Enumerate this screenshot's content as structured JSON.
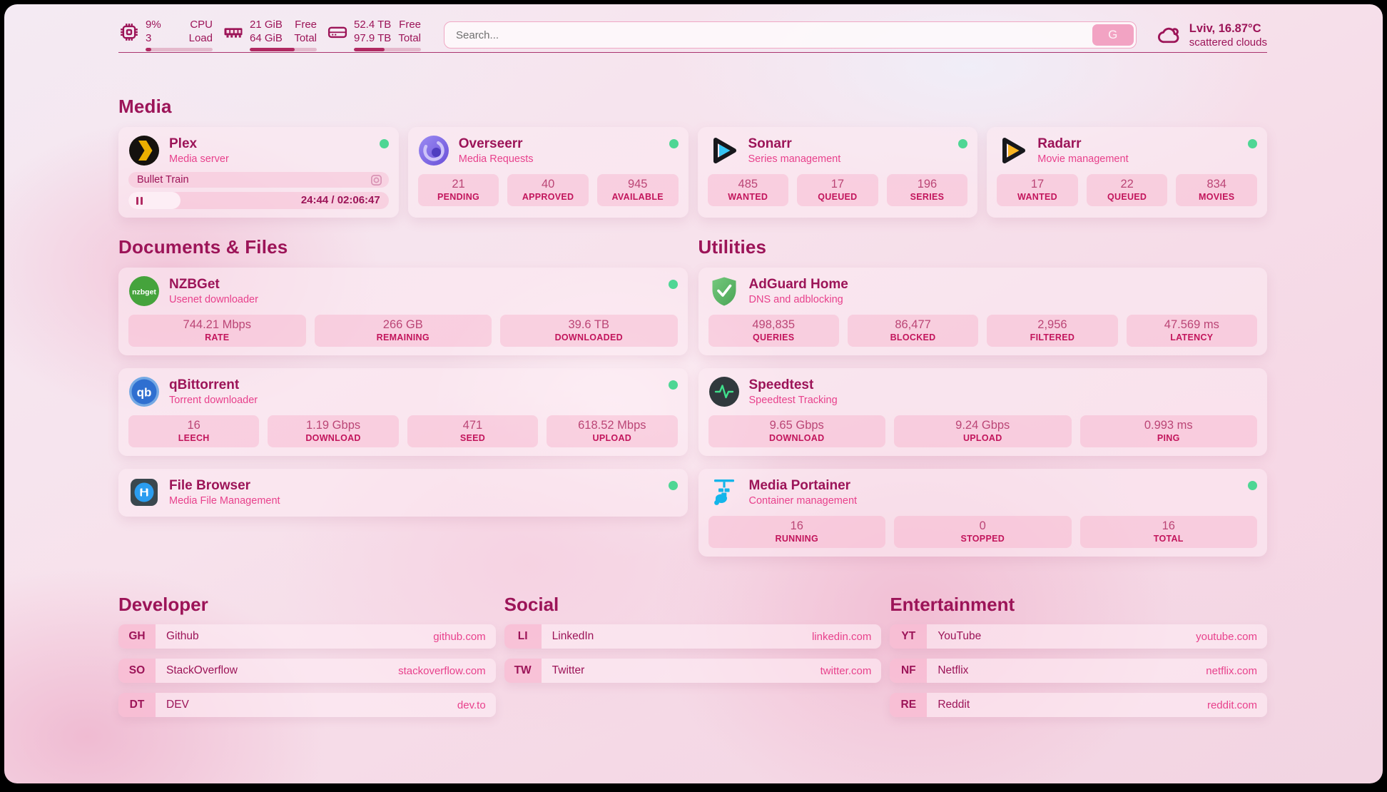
{
  "colors": {
    "accent_dark": "#9c1458",
    "accent_pink": "#e8418c",
    "status_online": "#4ed694",
    "bar_fill": "#b02a62"
  },
  "topbar": {
    "cpu": {
      "value": "9%",
      "secondary": "3",
      "label_top": "CPU",
      "label_bottom": "Load",
      "percent_used": 9
    },
    "memory": {
      "value": "21 GiB",
      "secondary": "64 GiB",
      "label_top": "Free",
      "label_bottom": "Total",
      "percent_used": 67
    },
    "storage": {
      "value": "52.4 TB",
      "secondary": "97.9 TB",
      "label_top": "Free",
      "label_bottom": "Total",
      "percent_used": 46
    },
    "search": {
      "placeholder": "Search...",
      "button_label": "G"
    },
    "weather": {
      "location_temp": "Lviv, 16.87°C",
      "condition": "scattered clouds"
    }
  },
  "media": {
    "title": "Media",
    "plex": {
      "name": "Plex",
      "subtitle": "Media server",
      "online": true,
      "now_playing": {
        "title": "Bullet Train",
        "time_display": "24:44 / 02:06:47",
        "elapsed": "24:44",
        "total": "02:06:47",
        "progress_percent": 20
      }
    },
    "overseerr": {
      "name": "Overseerr",
      "subtitle": "Media Requests",
      "online": true,
      "stats": [
        {
          "value": "21",
          "label": "PENDING"
        },
        {
          "value": "40",
          "label": "APPROVED"
        },
        {
          "value": "945",
          "label": "AVAILABLE"
        }
      ]
    },
    "sonarr": {
      "name": "Sonarr",
      "subtitle": "Series management",
      "online": true,
      "stats": [
        {
          "value": "485",
          "label": "WANTED"
        },
        {
          "value": "17",
          "label": "QUEUED"
        },
        {
          "value": "196",
          "label": "SERIES"
        }
      ]
    },
    "radarr": {
      "name": "Radarr",
      "subtitle": "Movie management",
      "online": true,
      "stats": [
        {
          "value": "17",
          "label": "WANTED"
        },
        {
          "value": "22",
          "label": "QUEUED"
        },
        {
          "value": "834",
          "label": "MOVIES"
        }
      ]
    }
  },
  "documents": {
    "title": "Documents & Files",
    "nzbget": {
      "name": "NZBGet",
      "subtitle": "Usenet downloader",
      "online": true,
      "stats": [
        {
          "value": "744.21 Mbps",
          "label": "RATE"
        },
        {
          "value": "266 GB",
          "label": "REMAINING"
        },
        {
          "value": "39.6 TB",
          "label": "DOWNLOADED"
        }
      ]
    },
    "qbittorrent": {
      "name": "qBittorrent",
      "subtitle": "Torrent downloader",
      "online": true,
      "stats": [
        {
          "value": "16",
          "label": "LEECH"
        },
        {
          "value": "1.19 Gbps",
          "label": "DOWNLOAD"
        },
        {
          "value": "471",
          "label": "SEED"
        },
        {
          "value": "618.52 Mbps",
          "label": "UPLOAD"
        }
      ]
    },
    "filebrowser": {
      "name": "File Browser",
      "subtitle": "Media File Management",
      "online": true
    }
  },
  "utilities": {
    "title": "Utilities",
    "adguard": {
      "name": "AdGuard Home",
      "subtitle": "DNS and adblocking",
      "stats": [
        {
          "value": "498,835",
          "label": "QUERIES"
        },
        {
          "value": "86,477",
          "label": "BLOCKED"
        },
        {
          "value": "2,956",
          "label": "FILTERED"
        },
        {
          "value": "47.569 ms",
          "label": "LATENCY"
        }
      ]
    },
    "speedtest": {
      "name": "Speedtest",
      "subtitle": "Speedtest Tracking",
      "stats": [
        {
          "value": "9.65 Gbps",
          "label": "DOWNLOAD"
        },
        {
          "value": "9.24 Gbps",
          "label": "UPLOAD"
        },
        {
          "value": "0.993 ms",
          "label": "PING"
        }
      ]
    },
    "portainer": {
      "name": "Media Portainer",
      "subtitle": "Container management",
      "online": true,
      "stats": [
        {
          "value": "16",
          "label": "RUNNING"
        },
        {
          "value": "0",
          "label": "STOPPED"
        },
        {
          "value": "16",
          "label": "TOTAL"
        }
      ]
    }
  },
  "bookmarks": {
    "developer": {
      "title": "Developer",
      "links": [
        {
          "abbr": "GH",
          "label": "Github",
          "domain": "github.com"
        },
        {
          "abbr": "SO",
          "label": "StackOverflow",
          "domain": "stackoverflow.com"
        },
        {
          "abbr": "DT",
          "label": "DEV",
          "domain": "dev.to"
        }
      ]
    },
    "social": {
      "title": "Social",
      "links": [
        {
          "abbr": "LI",
          "label": "LinkedIn",
          "domain": "linkedin.com"
        },
        {
          "abbr": "TW",
          "label": "Twitter",
          "domain": "twitter.com"
        }
      ]
    },
    "entertainment": {
      "title": "Entertainment",
      "links": [
        {
          "abbr": "YT",
          "label": "YouTube",
          "domain": "youtube.com"
        },
        {
          "abbr": "NF",
          "label": "Netflix",
          "domain": "netflix.com"
        },
        {
          "abbr": "RE",
          "label": "Reddit",
          "domain": "reddit.com"
        }
      ]
    }
  }
}
